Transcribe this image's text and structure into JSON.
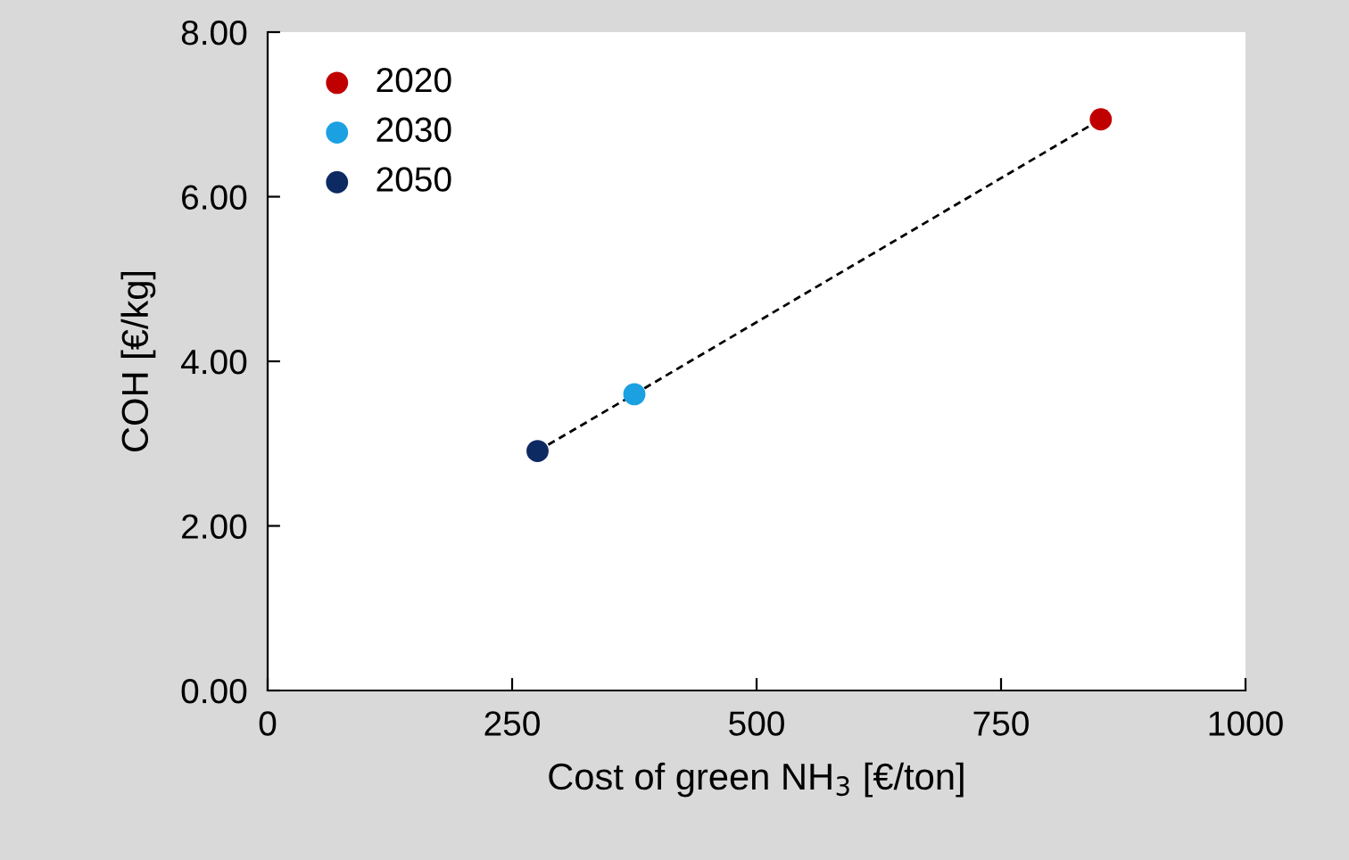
{
  "chart_data": {
    "type": "scatter",
    "xlabel": "Cost of green NH$_{3}$ [€/ton]",
    "ylabel": "COH [€/kg]",
    "xlim": [
      0,
      1000
    ],
    "xticks": [
      0,
      250,
      500,
      750,
      1000
    ],
    "ylim": [
      0,
      8
    ],
    "yticks": [
      {
        "value": 0,
        "label": "0.00"
      },
      {
        "value": 2,
        "label": "2.00"
      },
      {
        "value": 4,
        "label": "4.00"
      },
      {
        "value": 6,
        "label": "6.00"
      },
      {
        "value": 8,
        "label": "8.00"
      }
    ],
    "grid": false,
    "legend": "top left",
    "series": [
      {
        "type": "line",
        "color": "#000000",
        "line_style": "dashed",
        "x": [
          276,
          375,
          852
        ],
        "values": [
          2.91,
          3.6,
          6.94
        ]
      },
      {
        "name": "2020",
        "color": "#c00000",
        "marker": "circle",
        "x": [
          852
        ],
        "values": [
          6.94
        ]
      },
      {
        "name": "2030",
        "color": "#1ba1e2",
        "marker": "circle",
        "x": [
          375
        ],
        "values": [
          3.6
        ]
      },
      {
        "name": "2050",
        "color": "#0e2a63",
        "marker": "circle",
        "x": [
          276
        ],
        "values": [
          2.91
        ]
      }
    ]
  }
}
